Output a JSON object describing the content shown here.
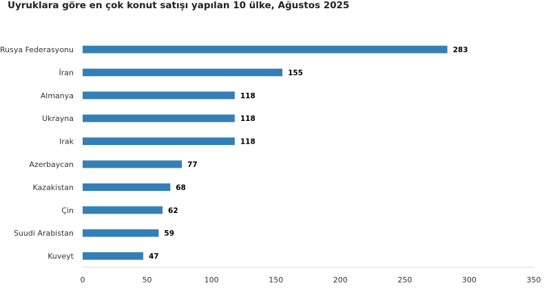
{
  "chart_data": {
    "type": "bar",
    "orientation": "horizontal",
    "title": "Uyruklara göre en çok konut satışı yapılan 10 ülke, Ağustos 2025",
    "categories": [
      "Rusya Federasyonu",
      "İran",
      "Almanya",
      "Ukrayna",
      "Irak",
      "Azerbaycan",
      "Kazakistan",
      "Çin",
      "Suudi Arabistan",
      "Kuveyt"
    ],
    "values": [
      283,
      155,
      118,
      118,
      118,
      77,
      68,
      62,
      59,
      47
    ],
    "xlim": [
      0,
      350
    ],
    "xticks": [
      0,
      50,
      100,
      150,
      200,
      250,
      300,
      350
    ],
    "grid": false,
    "data_labels": true,
    "legend": "none",
    "bar_color": "#3380B8",
    "axis_color": "#d9d9d9"
  }
}
